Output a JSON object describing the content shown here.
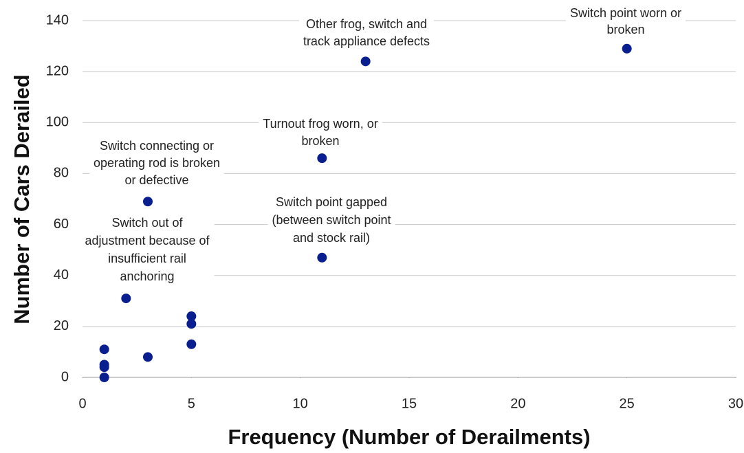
{
  "chart_data": {
    "type": "scatter",
    "xlabel": "Frequency (Number of Derailments)",
    "ylabel": "Number of Cars Derailed",
    "x": [
      25,
      13,
      11,
      3,
      11,
      2,
      5,
      5,
      5,
      3,
      1,
      1,
      1,
      1
    ],
    "values": [
      129,
      124,
      86,
      69,
      47,
      31,
      24,
      21,
      13,
      8,
      11,
      5,
      4,
      0
    ],
    "color": "#0a1f8f",
    "xlim": [
      0,
      30
    ],
    "xticks": [
      0,
      5,
      10,
      15,
      20,
      25,
      30
    ],
    "ylim": [
      0,
      140
    ],
    "yticks": [
      0,
      20,
      40,
      60,
      80,
      100,
      120,
      140
    ],
    "grid": true,
    "annotations": [
      {
        "lines": [
          "Switch point worn or",
          "broken"
        ]
      },
      {
        "lines": [
          "Other frog, switch and",
          "track appliance defects"
        ]
      },
      {
        "lines": [
          "Turnout frog  worn, or",
          "broken"
        ]
      },
      {
        "lines": [
          "Switch connecting or",
          "operating rod is broken",
          "or defective"
        ]
      },
      {
        "lines": [
          "Switch point gapped",
          "(between switch point",
          "and stock rail)"
        ]
      },
      {
        "lines": [
          "Switch out of",
          "adjustment because of",
          "insufficient rail",
          "anchoring"
        ]
      }
    ]
  }
}
